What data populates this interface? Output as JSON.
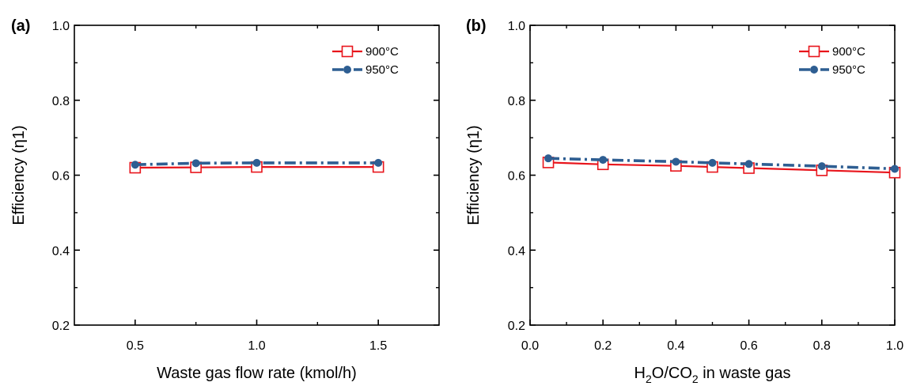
{
  "chart_data": [
    {
      "type": "line",
      "panel_label": "(a)",
      "xlabel": "Waste gas flow rate (kmol/h)",
      "ylabel": "Efficiency (η1)",
      "xlim": [
        0.25,
        1.75
      ],
      "ylim": [
        0.2,
        1.0
      ],
      "x_ticks": [
        "0.5",
        "1.0",
        "1.5"
      ],
      "y_ticks": [
        "0.2",
        "0.4",
        "0.6",
        "0.8",
        "1.0"
      ],
      "legend_position": "top-right",
      "series": [
        {
          "name": "900°C",
          "color": "#e8141b",
          "marker": "open-square",
          "line": "solid",
          "x": [
            0.5,
            0.75,
            1.0,
            1.5
          ],
          "values": [
            0.62,
            0.621,
            0.622,
            0.622
          ]
        },
        {
          "name": "950°C",
          "color": "#2e5e92",
          "marker": "filled-circle",
          "line": "dash-dot",
          "x": [
            0.5,
            0.75,
            1.0,
            1.5
          ],
          "values": [
            0.628,
            0.632,
            0.633,
            0.633
          ]
        }
      ]
    },
    {
      "type": "line",
      "panel_label": "(b)",
      "xlabel_parts": [
        "H",
        "2",
        "O/CO",
        "2",
        " in waste gas"
      ],
      "ylabel": "Efficiency (η1)",
      "xlim": [
        0.0,
        1.0
      ],
      "ylim": [
        0.2,
        1.0
      ],
      "x_ticks": [
        "0.0",
        "0.2",
        "0.4",
        "0.6",
        "0.8",
        "1.0"
      ],
      "y_ticks": [
        "0.2",
        "0.4",
        "0.6",
        "0.8",
        "1.0"
      ],
      "legend_position": "top-right",
      "series": [
        {
          "name": "900°C",
          "color": "#e8141b",
          "marker": "open-square",
          "line": "solid",
          "x": [
            0.05,
            0.2,
            0.4,
            0.5,
            0.6,
            0.8,
            1.0
          ],
          "values": [
            0.634,
            0.629,
            0.625,
            0.622,
            0.619,
            0.613,
            0.607
          ]
        },
        {
          "name": "950°C",
          "color": "#2e5e92",
          "marker": "filled-circle",
          "line": "dash-dot",
          "x": [
            0.05,
            0.2,
            0.4,
            0.5,
            0.6,
            0.8,
            1.0
          ],
          "values": [
            0.645,
            0.641,
            0.636,
            0.633,
            0.63,
            0.624,
            0.617
          ]
        }
      ]
    }
  ]
}
